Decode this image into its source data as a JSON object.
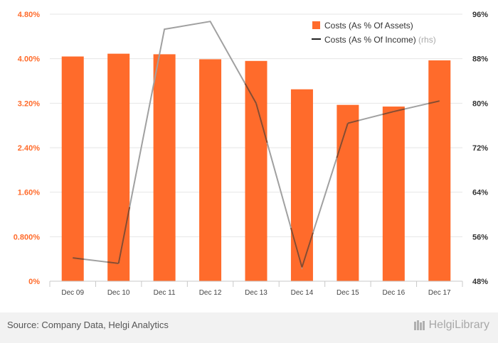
{
  "chart_data": {
    "type": "bar+line",
    "categories": [
      "Dec 09",
      "Dec 10",
      "Dec 11",
      "Dec 12",
      "Dec 13",
      "Dec 14",
      "Dec 15",
      "Dec 16",
      "Dec 17"
    ],
    "series": [
      {
        "name": "Costs (As % Of Assets)",
        "type": "bar",
        "axis": "left",
        "values": [
          4.04,
          4.09,
          4.08,
          3.99,
          3.96,
          3.45,
          3.17,
          3.14,
          3.97
        ]
      },
      {
        "name": "Costs (As % Of Income)",
        "legend_suffix": "(rhs)",
        "type": "line",
        "axis": "right",
        "values": [
          52.2,
          51.2,
          93.3,
          94.7,
          80.0,
          50.5,
          76.4,
          78.5,
          80.4
        ]
      }
    ],
    "y_left": {
      "ticks": [
        "0%",
        "0.800%",
        "1.60%",
        "2.40%",
        "3.20%",
        "4.00%",
        "4.80%"
      ],
      "min": 0,
      "max": 4.8
    },
    "y_right": {
      "ticks": [
        "48%",
        "56%",
        "64%",
        "72%",
        "80%",
        "88%",
        "96%"
      ],
      "min": 48,
      "max": 96
    },
    "legend_position": "top-right",
    "grid": "horizontal",
    "colors": {
      "bar": "#ff6b2b",
      "line": "#a0a0a0",
      "left_ticks": "#ff6b2b",
      "right_ticks": "#333333",
      "grid": "#e6e6e6"
    }
  },
  "footer": {
    "source": "Source: Company Data, Helgi Analytics",
    "brand": "HelgiLibrary",
    "brand_icon": "library-books-icon"
  }
}
